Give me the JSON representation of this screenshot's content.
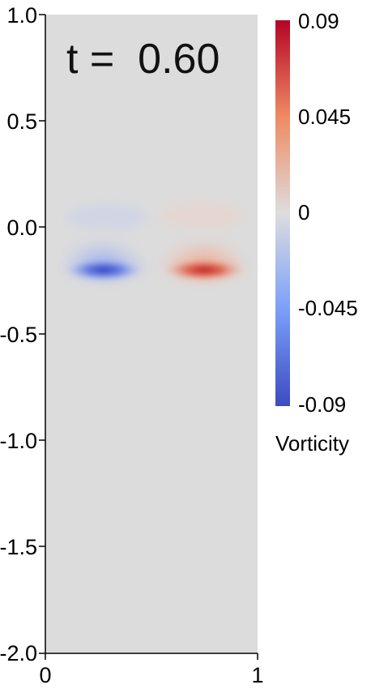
{
  "time_label": "t =  0.60",
  "colorbar": {
    "title": "Vorticity",
    "ticks": [
      "0.09",
      "0.045",
      "0",
      "-0.045",
      "-0.09"
    ],
    "colors": {
      "max": "#b40426",
      "mid": "#dddddd",
      "min": "#3b4cc0"
    }
  },
  "field": {
    "background": "#dcdcdc",
    "negative_vortex_color": "#3b4cc0",
    "positive_vortex_color": "#c0282d"
  },
  "chart_data": {
    "type": "heatmap",
    "title": "t =  0.60",
    "xlabel": "",
    "ylabel": "",
    "xlim": [
      0,
      1
    ],
    "ylim": [
      -2.0,
      1.0
    ],
    "x_ticks": [
      "0",
      "1"
    ],
    "y_ticks": [
      "1.0",
      "0.5",
      "0.0",
      "-0.5",
      "-1.0",
      "-1.5",
      "-2.0"
    ],
    "colorbar_range": [
      -0.09,
      0.09
    ],
    "features": [
      {
        "sign": "negative",
        "x_range": [
          0.1,
          0.47
        ],
        "y_center": -0.2,
        "peak": -0.09
      },
      {
        "sign": "positive",
        "x_range": [
          0.53,
          0.92
        ],
        "y_center": -0.2,
        "peak": 0.09
      }
    ]
  }
}
